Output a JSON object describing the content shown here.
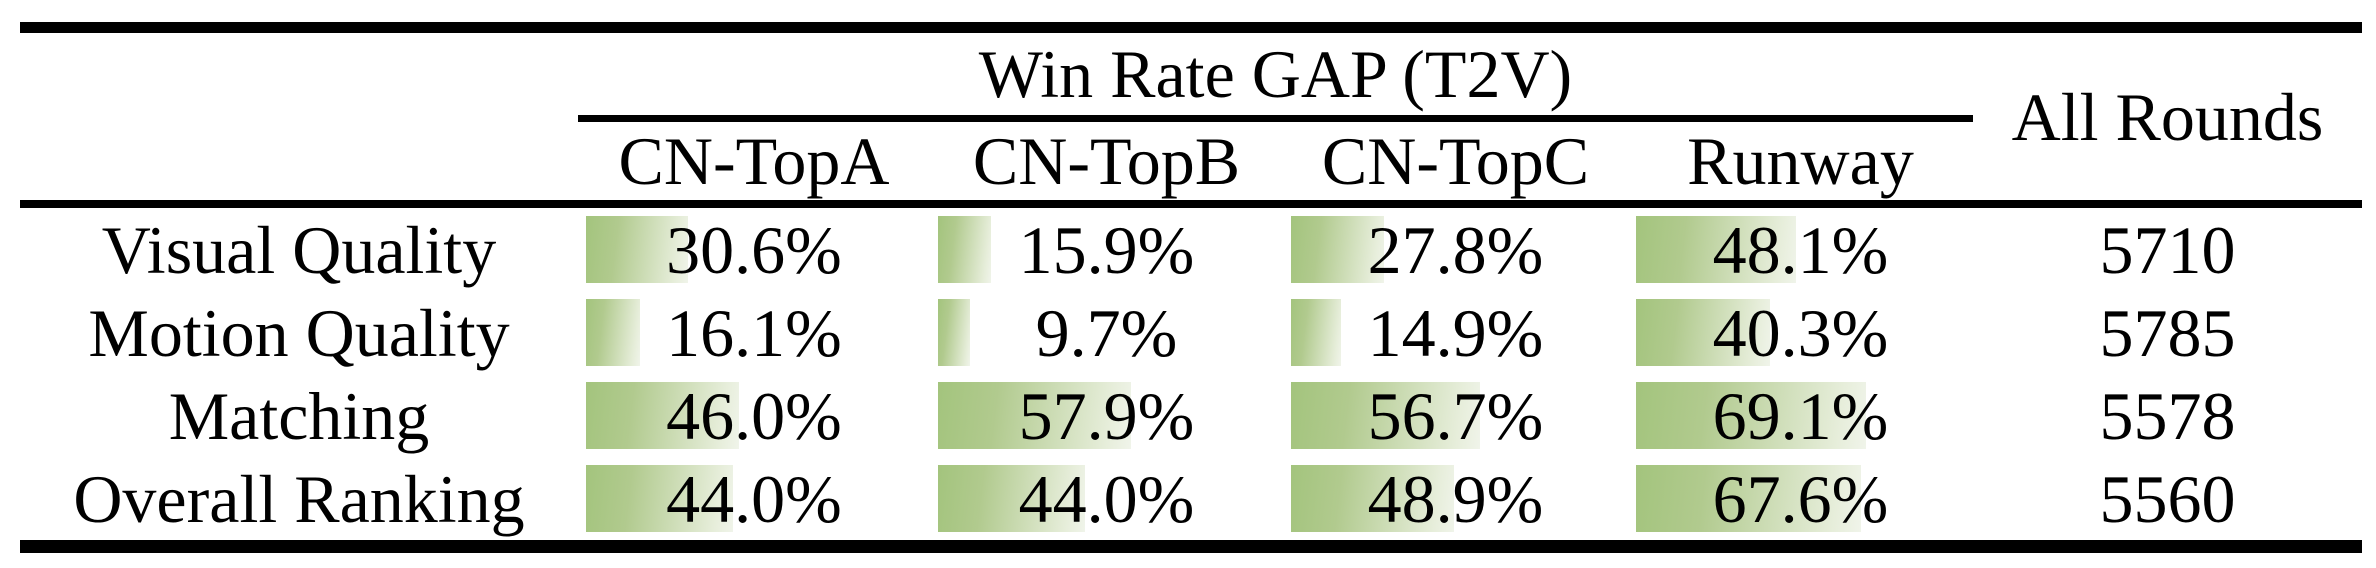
{
  "table": {
    "header": {
      "group_title": "Win Rate GAP (T2V)",
      "columns": [
        "CN-TopA",
        "CN-TopB",
        "CN-TopC",
        "Runway"
      ],
      "all_rounds_label": "All Rounds"
    },
    "rows": [
      {
        "label": "Visual Quality",
        "values": [
          "30.6%",
          "15.9%",
          "27.8%",
          "48.1%"
        ],
        "pcts": [
          30.6,
          15.9,
          27.8,
          48.1
        ],
        "all_rounds": "5710"
      },
      {
        "label": "Motion Quality",
        "values": [
          "16.1%",
          "9.7%",
          "14.9%",
          "40.3%"
        ],
        "pcts": [
          16.1,
          9.7,
          14.9,
          40.3
        ],
        "all_rounds": "5785"
      },
      {
        "label": "Matching",
        "values": [
          "46.0%",
          "57.9%",
          "56.7%",
          "69.1%"
        ],
        "pcts": [
          46.0,
          57.9,
          56.7,
          69.1
        ],
        "all_rounds": "5578"
      },
      {
        "label": "Overall Ranking",
        "values": [
          "44.0%",
          "44.0%",
          "48.9%",
          "67.6%"
        ],
        "pcts": [
          44.0,
          44.0,
          48.9,
          67.6
        ],
        "all_rounds": "5560"
      }
    ],
    "colors": {
      "bar_gradient_start": "#a3c47d",
      "bar_gradient_end": "#f0f4ea",
      "rule_color": "#000000",
      "text_color": "#000000"
    }
  }
}
